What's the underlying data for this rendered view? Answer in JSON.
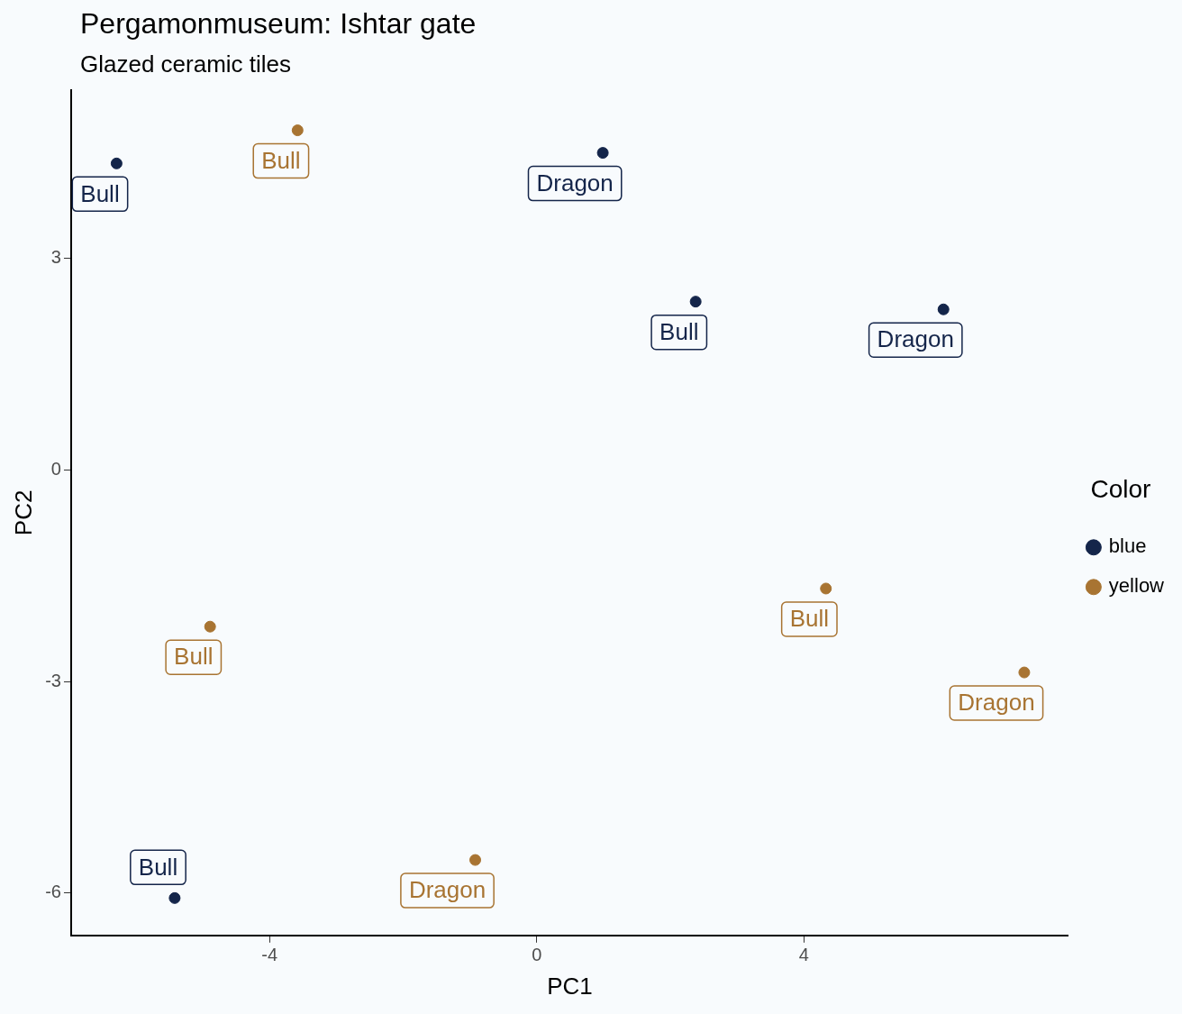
{
  "chart_data": {
    "type": "scatter",
    "title": "Pergamonmuseum: Ishtar gate",
    "subtitle": "Glazed ceramic tiles",
    "xlabel": "PC1",
    "ylabel": "PC2",
    "legend_title": "Color",
    "legend": "right",
    "grid": false,
    "marker": "circle",
    "xlim": [
      -6.97,
      7.96
    ],
    "ylim": [
      -6.6,
      5.39
    ],
    "xticks": [
      -4,
      0,
      4
    ],
    "yticks": [
      -6,
      -3,
      0,
      3
    ],
    "series": [
      {
        "name": "blue",
        "color": "#14254a",
        "x": [
          -6.29,
          0.99,
          2.38,
          6.09,
          -5.42
        ],
        "values": [
          4.35,
          4.5,
          2.39,
          2.28,
          -6.07
        ],
        "value_labels": [
          "Bull",
          "Dragon",
          "Bull",
          "Dragon",
          "Bull"
        ]
      },
      {
        "name": "yellow",
        "color": "#a87432",
        "x": [
          -3.58,
          -4.89,
          4.33,
          7.3,
          -0.92
        ],
        "values": [
          4.82,
          -2.22,
          -1.68,
          -2.87,
          -5.53
        ],
        "value_labels": [
          "Bull",
          "Bull",
          "Bull",
          "Dragon",
          "Dragon"
        ]
      }
    ]
  }
}
